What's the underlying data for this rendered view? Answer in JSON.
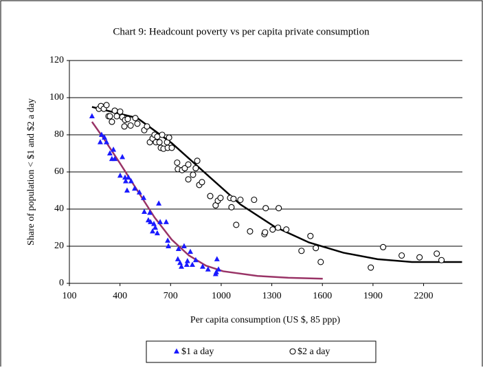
{
  "chart_data": {
    "type": "scatter",
    "title": "Chart 9: Headcount poverty vs per capita private consumption",
    "x_label": "Per capita consumption (US $, 85 ppp)",
    "y_label": "Share of population < $1 and $2 a day",
    "xlim": [
      100,
      2430
    ],
    "xticks": [
      100,
      400,
      700,
      1000,
      1300,
      1600,
      1900,
      2200
    ],
    "ylim": [
      0,
      120
    ],
    "yticks": [
      0,
      20,
      40,
      60,
      80,
      100,
      120
    ],
    "grid": true,
    "legend": "bottom",
    "series": [
      {
        "name": "$1 a day",
        "color": "#1a1aff",
        "marker": "triangle",
        "x": [
          234,
          283,
          291,
          308,
          320,
          340,
          352,
          361,
          369,
          401,
          414,
          430,
          434,
          442,
          450,
          466,
          487,
          515,
          540,
          544,
          568,
          577,
          581,
          593,
          601,
          609,
          621,
          630,
          638,
          674,
          683,
          687,
          743,
          747,
          756,
          764,
          780,
          796,
          800,
          817,
          829,
          849,
          890,
          922,
          971,
          984,
          975,
          967
        ],
        "values": [
          90,
          76,
          80,
          78.5,
          76,
          70,
          67,
          72,
          67,
          58,
          68,
          57,
          55,
          50,
          57,
          55,
          51,
          49,
          46,
          38.5,
          34,
          38,
          33,
          28,
          32,
          30,
          27,
          43,
          33,
          33,
          23,
          20,
          13,
          18.5,
          11,
          9,
          20,
          10,
          12,
          17,
          10,
          12.5,
          9,
          7.5,
          6,
          7.5,
          13,
          5
        ]
      },
      {
        "name": "$2 a day",
        "color": "#000000",
        "marker": "circle",
        "x": [
          275,
          287,
          304,
          320,
          332,
          352,
          340,
          369,
          381,
          401,
          414,
          426,
          430,
          446,
          463,
          491,
          503,
          544,
          560,
          577,
          593,
          605,
          613,
          621,
          634,
          650,
          642,
          658,
          679,
          683,
          691,
          707,
          739,
          743,
          768,
          784,
          805,
          805,
          833,
          849,
          858,
          870,
          886,
          935,
          967,
          980,
          996,
          1053,
          1061,
          1073,
          1089,
          1114,
          1171,
          1195,
          1256,
          1260,
          1264,
          1305,
          1337,
          1341,
          1386,
          1476,
          1529,
          1561,
          1590,
          1887,
          1960,
          2070,
          2176,
          2278,
          2306
        ],
        "values": [
          94,
          95.5,
          94,
          96,
          90,
          87,
          90,
          93,
          90,
          92.5,
          89.5,
          84.5,
          88,
          88.5,
          85,
          89,
          86,
          82.5,
          84.5,
          76,
          78,
          80,
          76,
          79,
          76,
          80,
          73,
          72.5,
          76,
          73,
          78.5,
          73,
          65,
          61.5,
          61,
          62,
          64,
          56,
          58.5,
          62,
          66,
          53,
          54.5,
          47,
          42,
          44.5,
          46,
          46,
          41,
          45.5,
          31.5,
          45,
          28,
          45,
          26.5,
          27.5,
          40.5,
          29,
          30,
          40.5,
          29,
          17.5,
          25.5,
          19,
          11.5,
          8.5,
          19.5,
          15,
          14,
          16,
          12.5
        ]
      }
    ],
    "trend_lines": [
      {
        "color": "#993366",
        "x": [
          234,
          300,
          401,
          503,
          605,
          707,
          809,
          910,
          1012,
          1215,
          1398,
          1602
        ],
        "values": [
          87,
          78.5,
          64.5,
          50,
          35.5,
          23.5,
          15,
          9.5,
          6.5,
          4,
          3,
          2.5
        ]
      },
      {
        "color": "#000000",
        "x": [
          234,
          503,
          707,
          910,
          1114,
          1317,
          1521,
          1724,
          1927,
          2131,
          2428
        ],
        "values": [
          95,
          89,
          75.5,
          59,
          42.5,
          30.5,
          22,
          16.5,
          13,
          11.5,
          11.5
        ]
      }
    ]
  }
}
